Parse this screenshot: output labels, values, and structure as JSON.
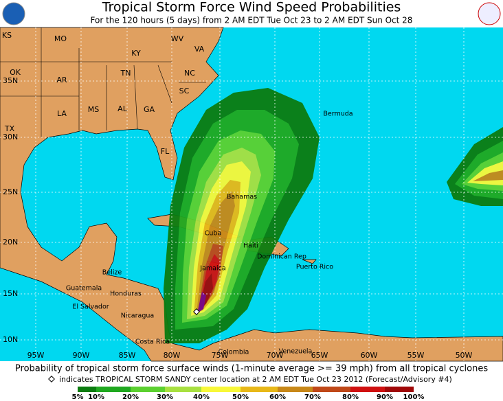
{
  "header": {
    "title": "Tropical Storm Force Wind Speed Probabilities",
    "subtitle": "For the 120 hours (5 days) from 2 AM EDT Tue Oct 23 to 2 AM EDT Sun Oct 28"
  },
  "map": {
    "state_labels": [
      "KS",
      "MO",
      "KY",
      "WV",
      "VA",
      "OK",
      "AR",
      "TN",
      "NC",
      "SC",
      "LA",
      "MS",
      "AL",
      "GA",
      "TX",
      "FL"
    ],
    "place_labels": [
      "Bermuda",
      "Bahamas",
      "Cuba",
      "Haiti",
      "Dominican Rep",
      "Puerto Rico",
      "Jamaica",
      "Belize",
      "Guatemala",
      "Honduras",
      "El Salvador",
      "Nicaragua",
      "Costa Rica",
      "Colombia",
      "Venezuela"
    ],
    "lat_labels": [
      "35N",
      "30N",
      "25N",
      "20N",
      "15N",
      "10N"
    ],
    "lon_labels": [
      "95W",
      "90W",
      "85W",
      "80W",
      "75W",
      "70W",
      "65W",
      "60W",
      "55W",
      "50W"
    ]
  },
  "footer": {
    "caption": "Probability of tropical storm force surface winds (1-minute average >= 39 mph) from all tropical cyclones",
    "note": "indicates TROPICAL STORM SANDY center location at 2 AM EDT Tue Oct 23 2012 (Forecast/Advisory #4)"
  },
  "legend": {
    "labels": [
      "5%",
      "10%",
      "20%",
      "30%",
      "40%",
      "50%",
      "60%",
      "70%",
      "80%",
      "90%",
      "100%"
    ],
    "colors": [
      "#0c7c10",
      "#20a820",
      "#5cd030",
      "#a8e040",
      "#f8f838",
      "#e8b818",
      "#c88818",
      "#c04818",
      "#d01010",
      "#a00808"
    ]
  }
}
